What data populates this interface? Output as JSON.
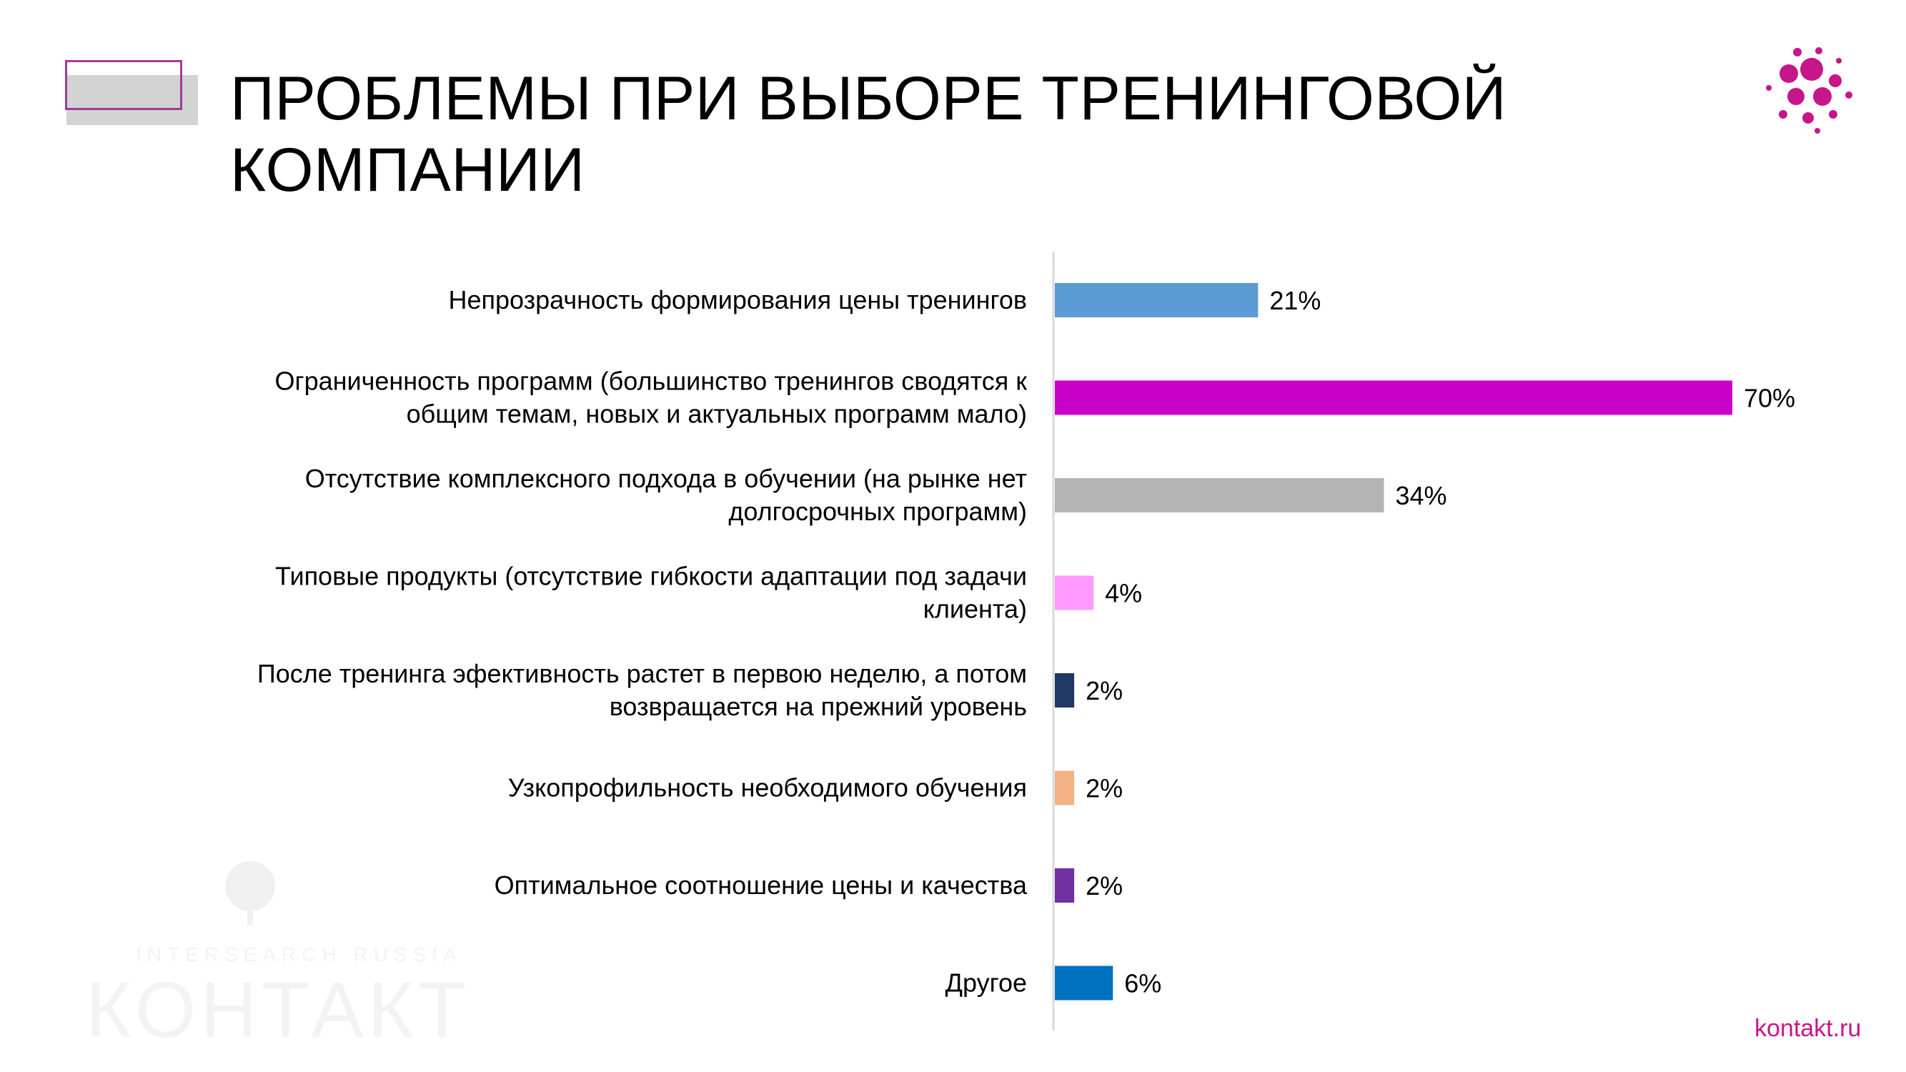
{
  "slide": {
    "title": "ПРОБЛЕМЫ ПРИ ВЫБОРЕ ТРЕНИНГОВОЙ КОМПАНИИ",
    "site": "kontakt.ru",
    "watermark": {
      "tagline": "INTERSEARCH RUSSIA",
      "name": "КОНТАКТ"
    },
    "colors": {
      "accent": "#c7158a",
      "deco_outline": "#a03c9b",
      "deco_gray": "#d3d3d3"
    }
  },
  "chart_data": {
    "type": "bar",
    "orientation": "horizontal",
    "title": "ПРОБЛЕМЫ ПРИ ВЫБОРЕ ТРЕНИНГОВОЙ КОМПАНИИ",
    "categories": [
      [
        "Непрозрачность формирования цены тренингов"
      ],
      [
        "Ограниченность программ (большинство тренингов сводятся к",
        "общим темам, новых и актуальных программ мало)"
      ],
      [
        "Отсутствие комплексного подхода в обучении (на рынке нет",
        "долгосрочных программ)"
      ],
      [
        "Типовые продукты (отсутствие гибкости адаптации под задачи",
        "клиента)"
      ],
      [
        "После тренинга эфективность растет в первою неделю, а потом",
        "возвращается на прежний уровень"
      ],
      [
        "Узкопрофильность необходимого обучения"
      ],
      [
        "Оптимальное соотношение цены и качества"
      ],
      [
        "Другое"
      ]
    ],
    "values": [
      21,
      70,
      34,
      4,
      2,
      2,
      2,
      6
    ],
    "value_labels": [
      "21%",
      "70%",
      "34%",
      "4%",
      "2%",
      "2%",
      "2%",
      "6%"
    ],
    "bar_colors": [
      "#5b9bd5",
      "#c800c8",
      "#b4b4b4",
      "#ff99ff",
      "#1f3864",
      "#f4b183",
      "#7030a0",
      "#0070c0"
    ],
    "xlim": [
      0,
      70
    ],
    "unit": "%",
    "grid": false,
    "legend": "none"
  }
}
